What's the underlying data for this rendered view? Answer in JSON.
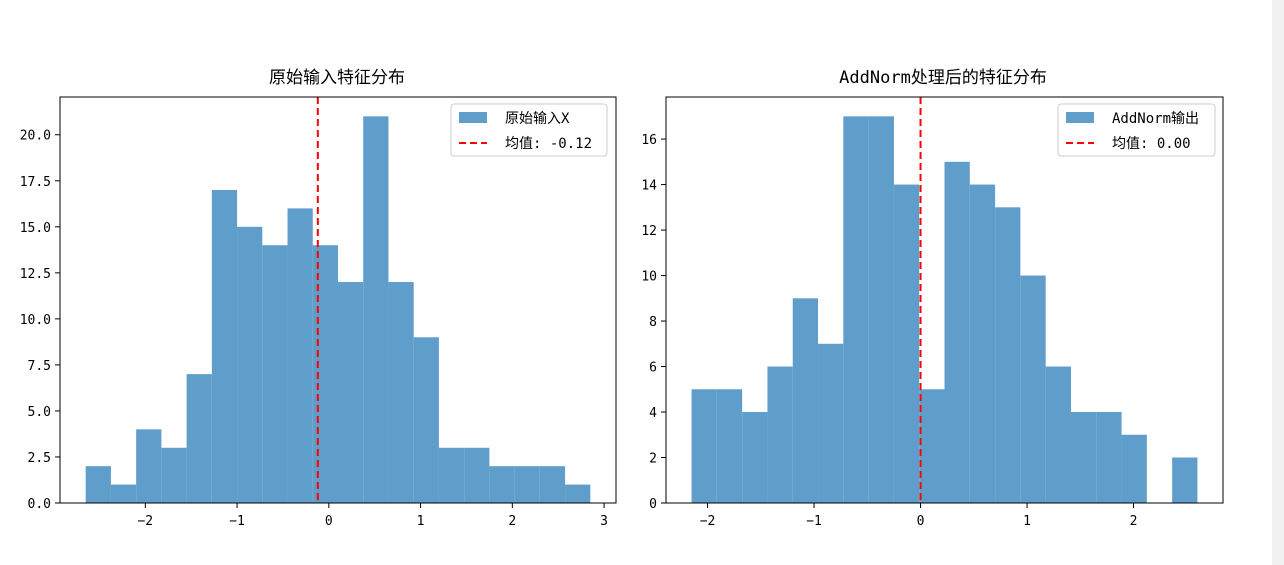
{
  "chart_data": [
    {
      "type": "bar",
      "title": "原始输入特征分布",
      "xlabel": "",
      "ylabel": "",
      "bin_edges": [
        -2.65,
        -2.375,
        -2.1,
        -1.825,
        -1.55,
        -1.275,
        -1.0,
        -0.725,
        -0.45,
        -0.175,
        0.1,
        0.375,
        0.65,
        0.925,
        1.2,
        1.475,
        1.75,
        2.025,
        2.3,
        2.575,
        2.85
      ],
      "values": [
        2,
        1,
        4,
        3,
        7,
        17,
        15,
        14,
        16,
        14,
        12,
        21,
        12,
        9,
        3,
        3,
        2,
        2,
        2,
        1
      ],
      "xlim": [
        -2.93,
        3.13
      ],
      "ylim": [
        0,
        22.05
      ],
      "xticks": [
        -2,
        -1,
        0,
        1,
        2,
        3
      ],
      "xtick_labels": [
        "−2",
        "−1",
        "0",
        "1",
        "2",
        "3"
      ],
      "yticks": [
        0,
        2.5,
        5,
        7.5,
        10,
        12.5,
        15,
        17.5,
        20
      ],
      "ytick_labels": [
        "0.0",
        "2.5",
        "5.0",
        "7.5",
        "10.0",
        "12.5",
        "15.0",
        "17.5",
        "20.0"
      ],
      "mean_line": -0.12,
      "legend_position": "upper right",
      "legend": [
        "原始输入X",
        "均值: -0.12"
      ],
      "bar_color": "#5f9dcb",
      "mean_color": "#ff0000"
    },
    {
      "type": "bar",
      "title": "AddNorm处理后的特征分布",
      "xlabel": "",
      "ylabel": "",
      "bin_edges": [
        -2.15,
        -1.9125,
        -1.675,
        -1.4375,
        -1.2,
        -0.9625,
        -0.725,
        -0.4875,
        -0.25,
        -0.0125,
        0.225,
        0.4625,
        0.7,
        0.9375,
        1.175,
        1.4125,
        1.65,
        1.8875,
        2.125,
        2.3625,
        2.6
      ],
      "values": [
        5,
        5,
        4,
        6,
        9,
        7,
        17,
        17,
        14,
        5,
        15,
        14,
        13,
        10,
        6,
        4,
        4,
        3,
        0,
        2
      ],
      "xlim": [
        -2.39,
        2.84
      ],
      "ylim": [
        0,
        17.85
      ],
      "xticks": [
        -2,
        -1,
        0,
        1,
        2
      ],
      "xtick_labels": [
        "−2",
        "−1",
        "0",
        "1",
        "2"
      ],
      "yticks": [
        0,
        2,
        4,
        6,
        8,
        10,
        12,
        14,
        16
      ],
      "ytick_labels": [
        "0",
        "2",
        "4",
        "6",
        "8",
        "10",
        "12",
        "14",
        "16"
      ],
      "mean_line": 0.0,
      "legend_position": "upper right",
      "legend": [
        "AddNorm输出",
        "均值: 0.00"
      ],
      "bar_color": "#5f9dcb",
      "mean_color": "#ff0000"
    }
  ]
}
